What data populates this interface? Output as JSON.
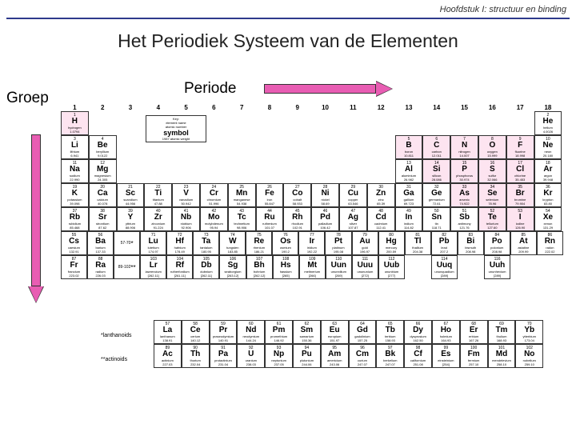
{
  "chapter": "Hoofdstuk I: structuur en binding",
  "title": "Het Periodiek Systeem van de Elementen",
  "labels": {
    "groep": "Groep",
    "periode": "Periode",
    "lanthanoids": "*lanthanoids",
    "actinoids": "**actinoids"
  },
  "colors": {
    "arrow_fill": "#e85db3",
    "arrow_border": "#333333",
    "hr": "#2e3a8c",
    "highlight": "#fde4f0"
  },
  "key": {
    "header": "Key:",
    "l1": "element name",
    "l2": "atomic number",
    "l3": "symbol",
    "l4": "1987 atomic weight"
  },
  "groups": [
    "1",
    "2",
    "3",
    "4",
    "5",
    "6",
    "7",
    "8",
    "9",
    "10",
    "11",
    "12",
    "13",
    "14",
    "15",
    "16",
    "17",
    "18"
  ],
  "rows": [
    [
      {
        "n": 1,
        "s": "H",
        "nm": "hydrogen",
        "w": "1.0794",
        "p": 1
      },
      null,
      null,
      null,
      null,
      null,
      null,
      null,
      null,
      null,
      null,
      null,
      null,
      null,
      null,
      null,
      null,
      {
        "n": 2,
        "s": "He",
        "nm": "helium",
        "w": "4.0026"
      }
    ],
    [
      {
        "n": 3,
        "s": "Li",
        "nm": "lithium",
        "w": "6.941"
      },
      {
        "n": 4,
        "s": "Be",
        "nm": "beryllium",
        "w": "9.0122"
      },
      null,
      null,
      null,
      null,
      null,
      null,
      null,
      null,
      null,
      null,
      {
        "n": 5,
        "s": "B",
        "nm": "boron",
        "w": "10.811",
        "p": 1
      },
      {
        "n": 6,
        "s": "C",
        "nm": "carbon",
        "w": "12.011",
        "p": 1
      },
      {
        "n": 7,
        "s": "N",
        "nm": "nitrogen",
        "w": "14.007",
        "p": 1
      },
      {
        "n": 8,
        "s": "O",
        "nm": "oxygen",
        "w": "15.999",
        "p": 1
      },
      {
        "n": 9,
        "s": "F",
        "nm": "fluorine",
        "w": "18.998",
        "p": 1
      },
      {
        "n": 10,
        "s": "Ne",
        "nm": "neon",
        "w": "20.180"
      }
    ],
    [
      {
        "n": 11,
        "s": "Na",
        "nm": "sodium",
        "w": "22.990"
      },
      {
        "n": 12,
        "s": "Mg",
        "nm": "magnesium",
        "w": "24.305"
      },
      null,
      null,
      null,
      null,
      null,
      null,
      null,
      null,
      null,
      null,
      {
        "n": 13,
        "s": "Al",
        "nm": "aluminium",
        "w": "26.982"
      },
      {
        "n": 14,
        "s": "Si",
        "nm": "silicon",
        "w": "28.086",
        "p": 1
      },
      {
        "n": 15,
        "s": "P",
        "nm": "phosphorus",
        "w": "30.974",
        "p": 1
      },
      {
        "n": 16,
        "s": "S",
        "nm": "sulfur",
        "w": "32.066",
        "p": 1
      },
      {
        "n": 17,
        "s": "Cl",
        "nm": "chlorine",
        "w": "35.453",
        "p": 1
      },
      {
        "n": 18,
        "s": "Ar",
        "nm": "argon",
        "w": "39.948"
      }
    ],
    [
      {
        "n": 19,
        "s": "K",
        "nm": "potassium",
        "w": "39.098"
      },
      {
        "n": 20,
        "s": "Ca",
        "nm": "calcium",
        "w": "40.078"
      },
      {
        "n": 21,
        "s": "Sc",
        "nm": "scandium",
        "w": "44.956"
      },
      {
        "n": 22,
        "s": "Ti",
        "nm": "titanium",
        "w": "47.88"
      },
      {
        "n": 23,
        "s": "V",
        "nm": "vanadium",
        "w": "50.942"
      },
      {
        "n": 24,
        "s": "Cr",
        "nm": "chromium",
        "w": "51.996"
      },
      {
        "n": 25,
        "s": "Mn",
        "nm": "manganese",
        "w": "54.938"
      },
      {
        "n": 26,
        "s": "Fe",
        "nm": "iron",
        "w": "55.847"
      },
      {
        "n": 27,
        "s": "Co",
        "nm": "cobalt",
        "w": "58.933"
      },
      {
        "n": 28,
        "s": "Ni",
        "nm": "nickel",
        "w": "58.69"
      },
      {
        "n": 29,
        "s": "Cu",
        "nm": "copper",
        "w": "63.546"
      },
      {
        "n": 30,
        "s": "Zn",
        "nm": "zinc",
        "w": "65.39"
      },
      {
        "n": 31,
        "s": "Ga",
        "nm": "gallium",
        "w": "69.723"
      },
      {
        "n": 32,
        "s": "Ge",
        "nm": "germanium",
        "w": "72.61"
      },
      {
        "n": 33,
        "s": "As",
        "nm": "arsenic",
        "w": "74.922",
        "p": 1
      },
      {
        "n": 34,
        "s": "Se",
        "nm": "selenium",
        "w": "78.96",
        "p": 1
      },
      {
        "n": 35,
        "s": "Br",
        "nm": "bromine",
        "w": "79.904",
        "p": 1
      },
      {
        "n": 36,
        "s": "Kr",
        "nm": "krypton",
        "w": "83.80"
      }
    ],
    [
      {
        "n": 37,
        "s": "Rb",
        "nm": "rubidium",
        "w": "85.468"
      },
      {
        "n": 38,
        "s": "Sr",
        "nm": "strontium",
        "w": "87.62"
      },
      {
        "n": 39,
        "s": "Y",
        "nm": "yttrium",
        "w": "88.906"
      },
      {
        "n": 40,
        "s": "Zr",
        "nm": "zirconium",
        "w": "91.224"
      },
      {
        "n": 41,
        "s": "Nb",
        "nm": "niobium",
        "w": "92.906"
      },
      {
        "n": 42,
        "s": "Mo",
        "nm": "molybdenum",
        "w": "95.94"
      },
      {
        "n": 43,
        "s": "Tc",
        "nm": "technetium",
        "w": "98.906"
      },
      {
        "n": 44,
        "s": "Ru",
        "nm": "ruthenium",
        "w": "101.07"
      },
      {
        "n": 45,
        "s": "Rh",
        "nm": "rhodium",
        "w": "102.91"
      },
      {
        "n": 46,
        "s": "Pd",
        "nm": "palladium",
        "w": "106.42"
      },
      {
        "n": 47,
        "s": "Ag",
        "nm": "silver",
        "w": "107.87"
      },
      {
        "n": 48,
        "s": "Cd",
        "nm": "cadmium",
        "w": "112.41"
      },
      {
        "n": 49,
        "s": "In",
        "nm": "indium",
        "w": "114.82"
      },
      {
        "n": 50,
        "s": "Sn",
        "nm": "tin",
        "w": "118.71"
      },
      {
        "n": 51,
        "s": "Sb",
        "nm": "antimony",
        "w": "121.76"
      },
      {
        "n": 52,
        "s": "Te",
        "nm": "tellurium",
        "w": "127.60",
        "p": 1
      },
      {
        "n": 53,
        "s": "I",
        "nm": "iodine",
        "w": "126.90",
        "p": 1
      },
      {
        "n": 54,
        "s": "Xe",
        "nm": "xenon",
        "w": "131.29"
      }
    ],
    [
      {
        "n": 55,
        "s": "Cs",
        "nm": "caesium",
        "w": "132.91"
      },
      {
        "n": 56,
        "s": "Ba",
        "nm": "barium",
        "w": "137.33"
      },
      {
        "star": "*",
        "r": "57-70"
      },
      {
        "n": 71,
        "s": "Lu",
        "nm": "lutetium",
        "w": "174.97"
      },
      {
        "n": 72,
        "s": "Hf",
        "nm": "hafnium",
        "w": "178.49"
      },
      {
        "n": 73,
        "s": "Ta",
        "nm": "tantalum",
        "w": "180.95"
      },
      {
        "n": 74,
        "s": "W",
        "nm": "tungsten",
        "w": "183.85"
      },
      {
        "n": 75,
        "s": "Re",
        "nm": "rhenium",
        "w": "186.21"
      },
      {
        "n": 76,
        "s": "Os",
        "nm": "osmium",
        "w": "190.2"
      },
      {
        "n": 77,
        "s": "Ir",
        "nm": "iridium",
        "w": "192.22"
      },
      {
        "n": 78,
        "s": "Pt",
        "nm": "platinum",
        "w": "195.08"
      },
      {
        "n": 79,
        "s": "Au",
        "nm": "gold",
        "w": "196.97"
      },
      {
        "n": 80,
        "s": "Hg",
        "nm": "mercury",
        "w": "200.59"
      },
      {
        "n": 81,
        "s": "Tl",
        "nm": "thallium",
        "w": "204.38"
      },
      {
        "n": 82,
        "s": "Pb",
        "nm": "lead",
        "w": "207.2"
      },
      {
        "n": 83,
        "s": "Bi",
        "nm": "bismuth",
        "w": "208.98"
      },
      {
        "n": 84,
        "s": "Po",
        "nm": "polonium",
        "w": "208.98"
      },
      {
        "n": 85,
        "s": "At",
        "nm": "astatine",
        "w": "209.99"
      },
      {
        "n": 86,
        "s": "Rn",
        "nm": "radon",
        "w": "222.02"
      }
    ],
    [
      {
        "n": 87,
        "s": "Fr",
        "nm": "francium",
        "w": "223.02"
      },
      {
        "n": 88,
        "s": "Ra",
        "nm": "radium",
        "w": "226.03"
      },
      {
        "star": "**",
        "r": "89-102"
      },
      {
        "n": 103,
        "s": "Lr",
        "nm": "lawrencium",
        "w": "[262.11]"
      },
      {
        "n": 104,
        "s": "Rf",
        "nm": "rutherfordium",
        "w": "[261.11]"
      },
      {
        "n": 105,
        "s": "Db",
        "nm": "dubnium",
        "w": "[262.11]"
      },
      {
        "n": 106,
        "s": "Sg",
        "nm": "seaborgium",
        "w": "[263.12]"
      },
      {
        "n": 107,
        "s": "Bh",
        "nm": "bohrium",
        "w": "[262.12]"
      },
      {
        "n": 108,
        "s": "Hs",
        "nm": "hassium",
        "w": "[265]"
      },
      {
        "n": 109,
        "s": "Mt",
        "nm": "meitnerium",
        "w": "[266]"
      },
      {
        "n": 110,
        "s": "Uun",
        "nm": "ununnilium",
        "w": "[269]"
      },
      {
        "n": 111,
        "s": "Uuu",
        "nm": "unununium",
        "w": "[272]"
      },
      {
        "n": 112,
        "s": "Uub",
        "nm": "ununbium",
        "w": "[277]"
      },
      null,
      {
        "n": 114,
        "s": "Uuq",
        "nm": "ununquadium",
        "w": "[289]"
      },
      null,
      {
        "n": 116,
        "s": "Uuh",
        "nm": "ununhexium",
        "w": "[289]"
      },
      null,
      null
    ]
  ],
  "frows": [
    [
      {
        "n": 57,
        "s": "La",
        "nm": "lanthanum",
        "w": "138.91"
      },
      {
        "n": 58,
        "s": "Ce",
        "nm": "cerium",
        "w": "140.12"
      },
      {
        "n": 59,
        "s": "Pr",
        "nm": "praseodymium",
        "w": "140.91"
      },
      {
        "n": 60,
        "s": "Nd",
        "nm": "neodymium",
        "w": "144.24"
      },
      {
        "n": 61,
        "s": "Pm",
        "nm": "promethium",
        "w": "146.92"
      },
      {
        "n": 62,
        "s": "Sm",
        "nm": "samarium",
        "w": "150.36"
      },
      {
        "n": 63,
        "s": "Eu",
        "nm": "europium",
        "w": "151.97"
      },
      {
        "n": 64,
        "s": "Gd",
        "nm": "gadolinium",
        "w": "157.25"
      },
      {
        "n": 65,
        "s": "Tb",
        "nm": "terbium",
        "w": "158.93"
      },
      {
        "n": 66,
        "s": "Dy",
        "nm": "dysprosium",
        "w": "162.50"
      },
      {
        "n": 67,
        "s": "Ho",
        "nm": "holmium",
        "w": "164.93"
      },
      {
        "n": 68,
        "s": "Er",
        "nm": "erbium",
        "w": "167.26"
      },
      {
        "n": 69,
        "s": "Tm",
        "nm": "thulium",
        "w": "168.93"
      },
      {
        "n": 70,
        "s": "Yb",
        "nm": "ytterbium",
        "w": "173.04"
      }
    ],
    [
      {
        "n": 89,
        "s": "Ac",
        "nm": "actinium",
        "w": "227.03"
      },
      {
        "n": 90,
        "s": "Th",
        "nm": "thorium",
        "w": "232.04"
      },
      {
        "n": 91,
        "s": "Pa",
        "nm": "protactinium",
        "w": "231.04"
      },
      {
        "n": 92,
        "s": "U",
        "nm": "uranium",
        "w": "238.03"
      },
      {
        "n": 93,
        "s": "Np",
        "nm": "neptunium",
        "w": "237.05"
      },
      {
        "n": 94,
        "s": "Pu",
        "nm": "plutonium",
        "w": "244.06"
      },
      {
        "n": 95,
        "s": "Am",
        "nm": "americium",
        "w": "243.06"
      },
      {
        "n": 96,
        "s": "Cm",
        "nm": "curium",
        "w": "247.07"
      },
      {
        "n": 97,
        "s": "Bk",
        "nm": "berkelium",
        "w": "247.07"
      },
      {
        "n": 98,
        "s": "Cf",
        "nm": "californium",
        "w": "251.08"
      },
      {
        "n": 99,
        "s": "Es",
        "nm": "einsteinium",
        "w": "[254]"
      },
      {
        "n": 100,
        "s": "Fm",
        "nm": "fermium",
        "w": "257.10"
      },
      {
        "n": 101,
        "s": "Md",
        "nm": "mendelevium",
        "w": "258.10"
      },
      {
        "n": 102,
        "s": "No",
        "nm": "nobelium",
        "w": "259.10"
      }
    ]
  ]
}
